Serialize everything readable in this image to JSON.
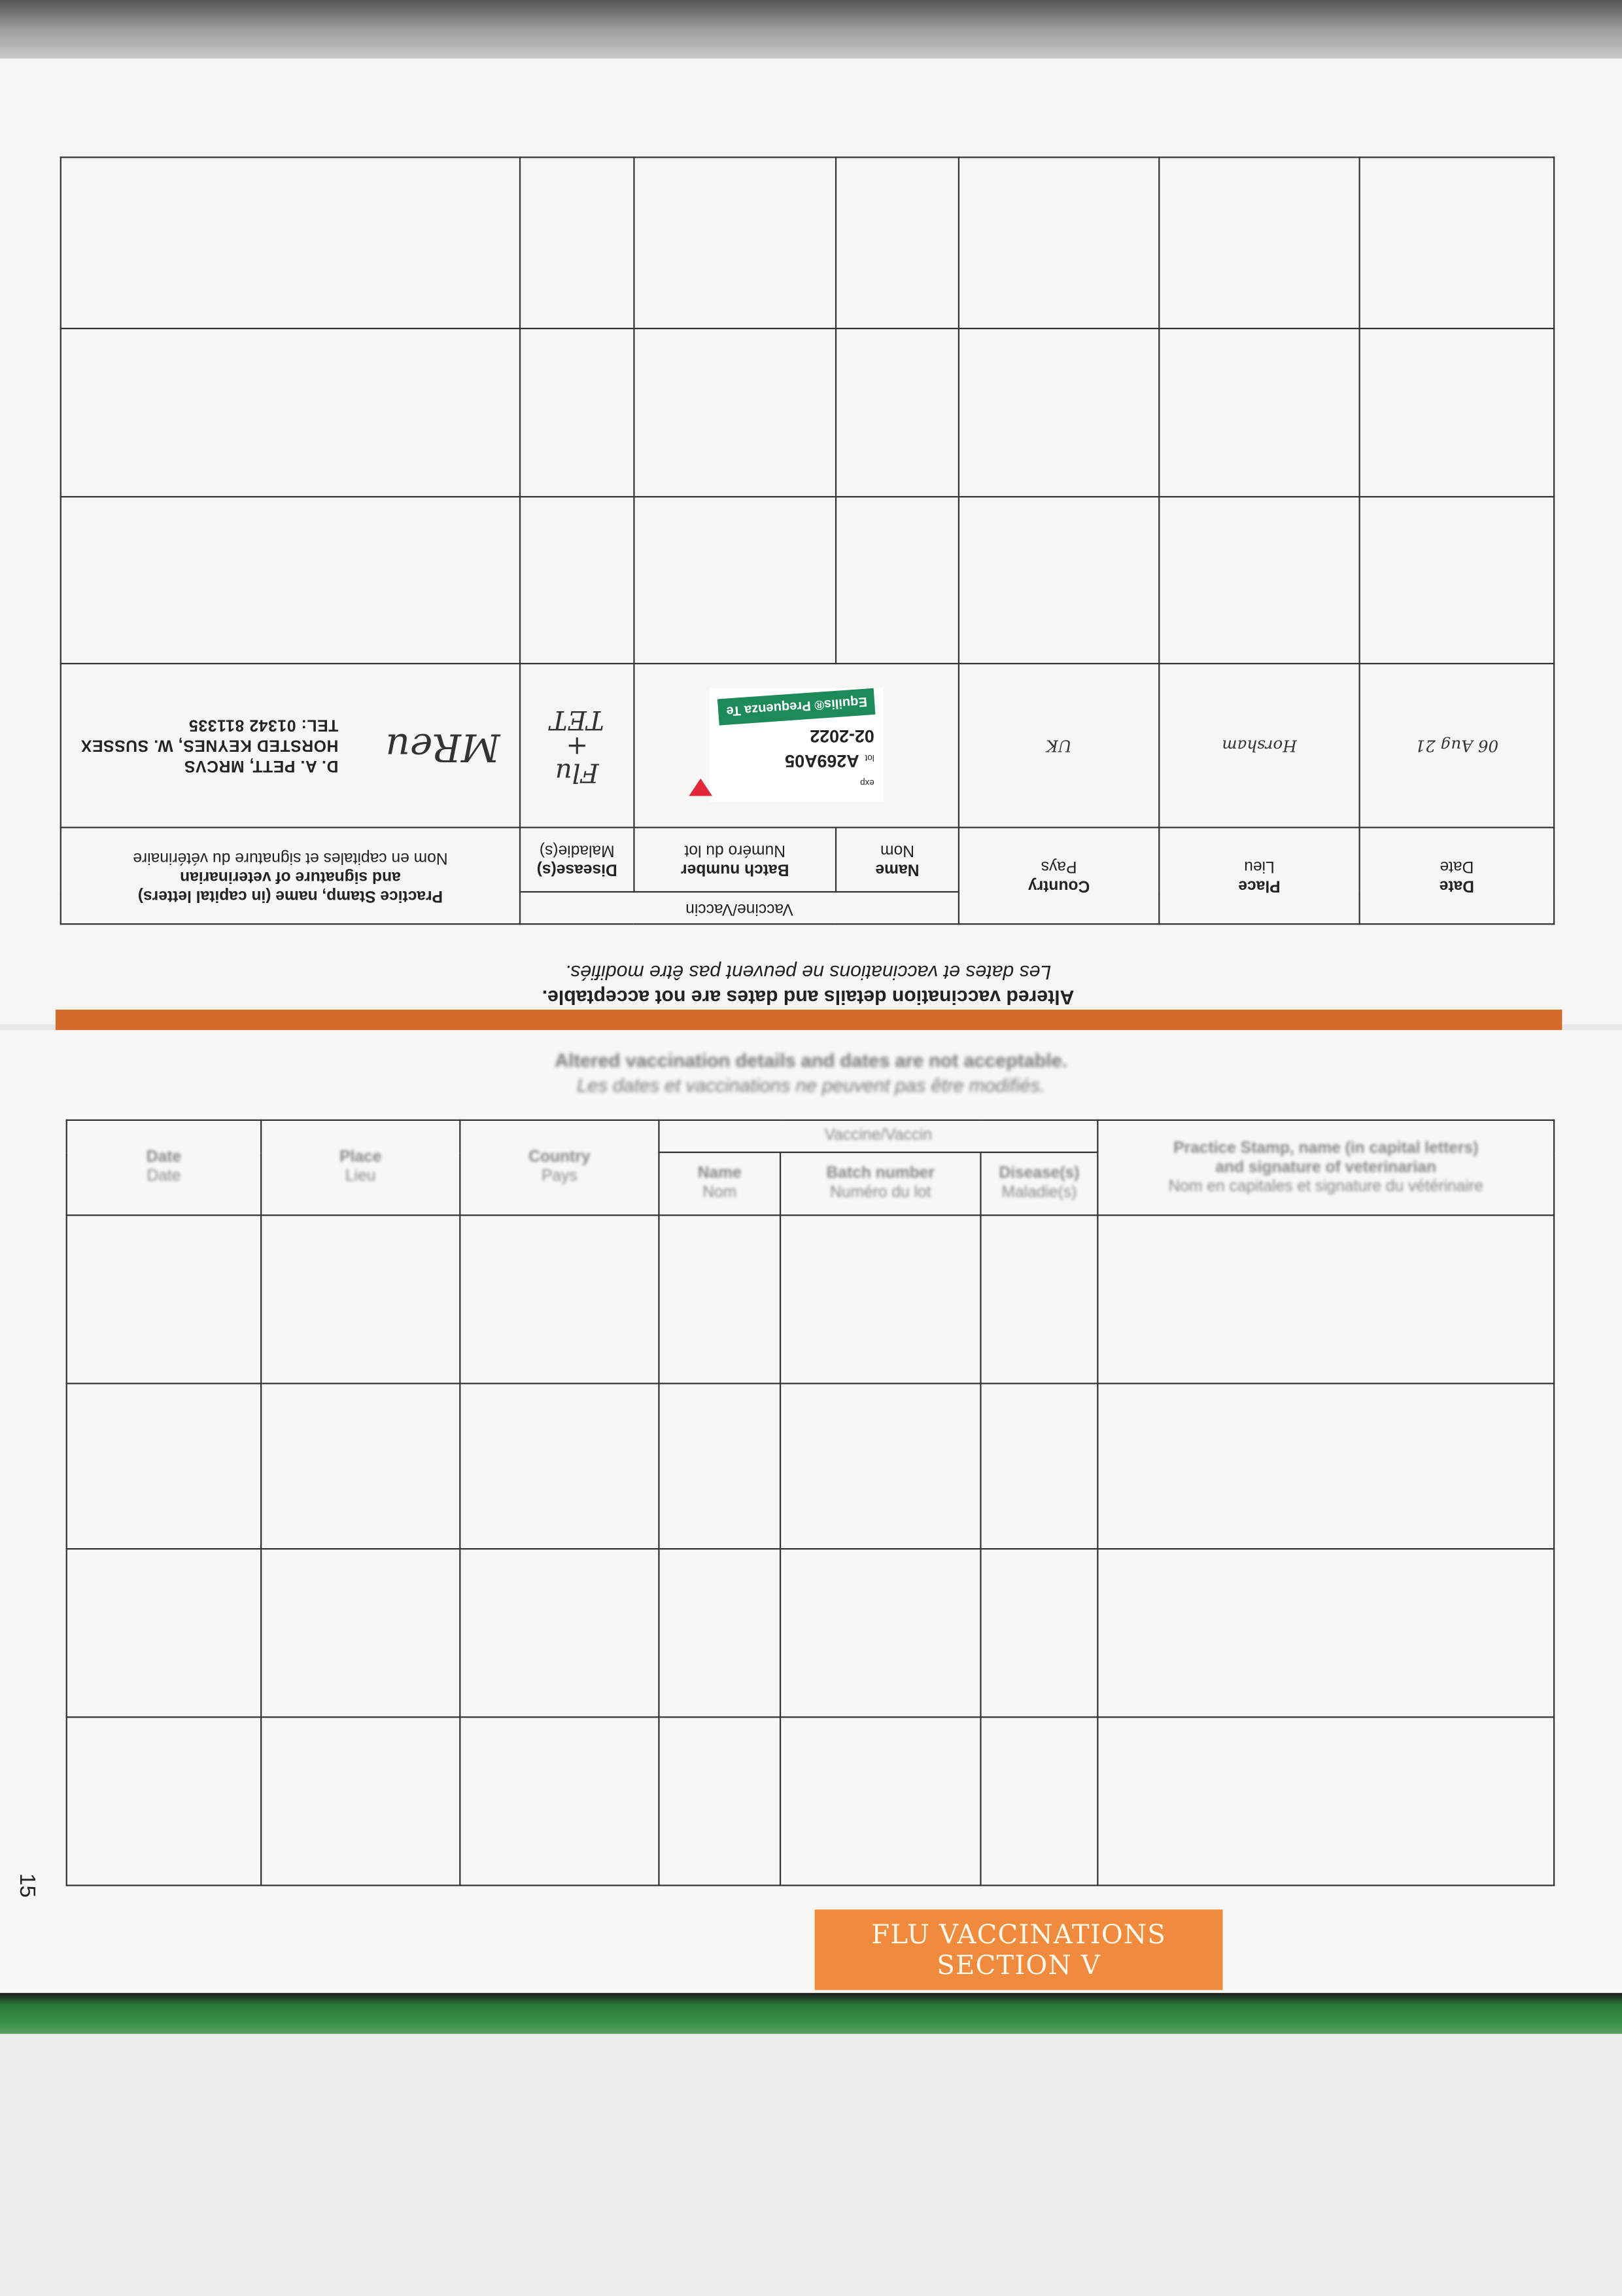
{
  "warning": {
    "en": "Altered vaccination details and dates are not acceptable.",
    "fr": "Les dates et vaccinations ne peuvent pas être modifiés."
  },
  "headers": {
    "date_en": "Date",
    "date_fr": "Date",
    "place_en": "Place",
    "place_fr": "Lieu",
    "country_en": "Country",
    "country_fr": "Pays",
    "vaccine": "Vaccine/Vaccin",
    "name_en": "Name",
    "name_fr": "Nom",
    "batch_en": "Batch number",
    "batch_fr": "Numéro du lot",
    "disease_en": "Disease(s)",
    "disease_fr": "Maladie(s)",
    "practice_en1": "Practice Stamp, name (in capital letters)",
    "practice_en2": "and signature of veterinarian",
    "practice_fr": "Nom en capitales et signature du vétérinaire"
  },
  "entry": {
    "date": "06 Aug 21",
    "place": "Horsham",
    "country": "UK",
    "sticker_brand": "Equilis® Prequenza Te",
    "lot_label": "lot",
    "lot": "A269A05",
    "exp_label": "exp",
    "expiry": "02-2022",
    "disease_line1": "Flu",
    "disease_line2": "+",
    "disease_line3": "TET",
    "signature": "MReu",
    "stamp_line1": "D. A. PETT, MRCVS",
    "stamp_line2": "HORSTED KEYNES, W. SUSSEX",
    "stamp_line3": "TEL: 01342 811335"
  },
  "page_number": "15",
  "section": {
    "line1": "FLU VACCINATIONS",
    "line2": "SECTION V",
    "color": "#f08a3c"
  }
}
